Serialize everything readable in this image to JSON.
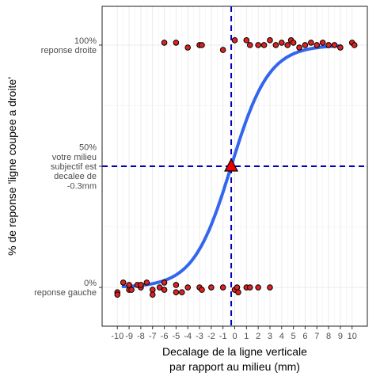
{
  "chart_data": {
    "type": "scatter",
    "title": "",
    "xlabel": [
      "Decalage de la ligne verticale",
      "par rapport au milieu (mm)"
    ],
    "ylabel": "% de reponse 'ligne coupee a droite'",
    "x_ticks": [
      -10,
      -9,
      -8,
      -7,
      -6,
      -5,
      -4,
      -3,
      -2,
      -1,
      0,
      1,
      2,
      3,
      4,
      5,
      6,
      7,
      8,
      9,
      10
    ],
    "xlim": [
      -11.3,
      11.3
    ],
    "ylim": [
      -0.16,
      1.16
    ],
    "grid": true,
    "y_ticks": [
      {
        "value": 1,
        "lines": [
          "100%",
          "reponse droite"
        ]
      },
      {
        "value": 0.5,
        "lines": [
          "50%",
          "votre milieu",
          "subjectif est",
          "decalee de",
          "-0.3mm"
        ]
      },
      {
        "value": 0,
        "lines": [
          "0%",
          "reponse gauche"
        ]
      }
    ],
    "pse": {
      "x": -0.3,
      "y": 0.5
    },
    "colors": {
      "curve": "#3366ee",
      "points": "#dd2222",
      "pse_marker": "#ee0000",
      "ref_lines": "#0000bb"
    },
    "fit_curve": {
      "type": "logistic",
      "midpoint": -0.3,
      "slope": 0.62
    },
    "points": [
      {
        "x": -10,
        "y": -0.02
      },
      {
        "x": -10,
        "y": -0.03
      },
      {
        "x": -9.5,
        "y": 0.02
      },
      {
        "x": -9,
        "y": -0.01
      },
      {
        "x": -9,
        "y": 0.01
      },
      {
        "x": -8.8,
        "y": -0.01
      },
      {
        "x": -8.3,
        "y": 0.01
      },
      {
        "x": -8,
        "y": 0.0
      },
      {
        "x": -8,
        "y": 0.01
      },
      {
        "x": -7.5,
        "y": 0.02
      },
      {
        "x": -7,
        "y": -0.01
      },
      {
        "x": -7,
        "y": -0.03
      },
      {
        "x": -6.4,
        "y": 0.0
      },
      {
        "x": -6,
        "y": 0.02
      },
      {
        "x": -6,
        "y": -0.01
      },
      {
        "x": -5,
        "y": -0.02
      },
      {
        "x": -5,
        "y": 0.01
      },
      {
        "x": -4.5,
        "y": -0.02
      },
      {
        "x": -4,
        "y": 0.0
      },
      {
        "x": -3,
        "y": 0.0
      },
      {
        "x": -2.8,
        "y": -0.01
      },
      {
        "x": -2,
        "y": 0.0
      },
      {
        "x": -1,
        "y": 0.0
      },
      {
        "x": 0,
        "y": -0.01
      },
      {
        "x": 0.2,
        "y": 0.0
      },
      {
        "x": 0.3,
        "y": -0.02
      },
      {
        "x": 1,
        "y": 0.0
      },
      {
        "x": 1.3,
        "y": 0.0
      },
      {
        "x": 2,
        "y": 0.0
      },
      {
        "x": 3,
        "y": 0.0
      },
      {
        "x": -6,
        "y": 1.01
      },
      {
        "x": -5,
        "y": 1.01
      },
      {
        "x": -4,
        "y": 0.99
      },
      {
        "x": -3,
        "y": 1.0
      },
      {
        "x": -2.8,
        "y": 1.0
      },
      {
        "x": -1,
        "y": 0.98
      },
      {
        "x": 0,
        "y": 1.02
      },
      {
        "x": 1,
        "y": 1.02
      },
      {
        "x": 1.3,
        "y": 1.0
      },
      {
        "x": 2,
        "y": 1.0
      },
      {
        "x": 2.5,
        "y": 1.0
      },
      {
        "x": 3,
        "y": 1.02
      },
      {
        "x": 3.5,
        "y": 1.0
      },
      {
        "x": 4,
        "y": 1.01
      },
      {
        "x": 4.5,
        "y": 1.0
      },
      {
        "x": 4.8,
        "y": 1.02
      },
      {
        "x": 5,
        "y": 1.01
      },
      {
        "x": 5.5,
        "y": 0.99
      },
      {
        "x": 6,
        "y": 1.0
      },
      {
        "x": 6.5,
        "y": 1.01
      },
      {
        "x": 7,
        "y": 1.0
      },
      {
        "x": 7.5,
        "y": 1.01
      },
      {
        "x": 8,
        "y": 1.0
      },
      {
        "x": 8.5,
        "y": 1.0
      },
      {
        "x": 9,
        "y": 0.99
      },
      {
        "x": 10,
        "y": 1.01
      },
      {
        "x": 10.2,
        "y": 1.0
      }
    ]
  }
}
